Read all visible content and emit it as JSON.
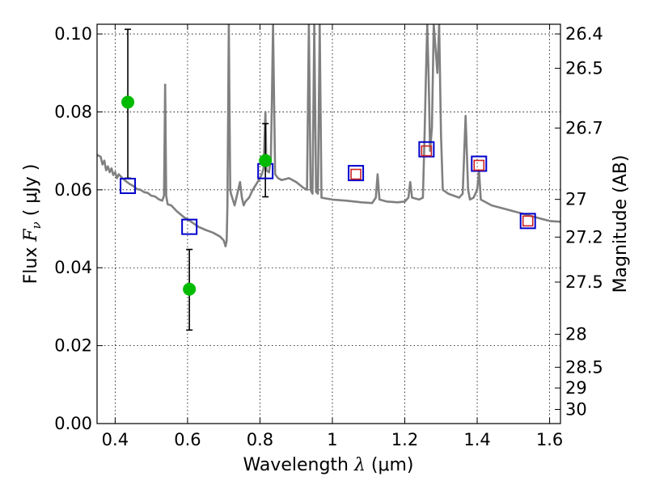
{
  "chart_data": {
    "type": "scatter",
    "xlabel": {
      "prefix": "Wavelength  ",
      "symbol": "λ",
      "unit": " (μm)"
    },
    "ylabel": {
      "prefix": "Flux  ",
      "symbol": "F",
      "sub": "ν",
      "unit": "  ( μJy )"
    },
    "y2label": "Magnitude (AB)",
    "xlim": [
      0.35,
      1.63
    ],
    "ylim": [
      0.0,
      0.1025
    ],
    "grid": true,
    "xticks": [
      {
        "value": 0.4,
        "label": "0.4"
      },
      {
        "value": 0.6,
        "label": "0.6"
      },
      {
        "value": 0.8,
        "label": "0.8"
      },
      {
        "value": 1.0,
        "label": "1"
      },
      {
        "value": 1.2,
        "label": "1.2"
      },
      {
        "value": 1.4,
        "label": "1.4"
      },
      {
        "value": 1.6,
        "label": "1.6"
      }
    ],
    "yticks": [
      {
        "value": 0.0,
        "label": "0.00"
      },
      {
        "value": 0.02,
        "label": "0.02"
      },
      {
        "value": 0.04,
        "label": "0.04"
      },
      {
        "value": 0.06,
        "label": "0.06"
      },
      {
        "value": 0.08,
        "label": "0.08"
      },
      {
        "value": 0.1,
        "label": "0.10"
      }
    ],
    "y2ticks": [
      {
        "value": 26.4,
        "label": "26.4"
      },
      {
        "value": 26.5,
        "label": "26.5"
      },
      {
        "value": 26.7,
        "label": "26.7"
      },
      {
        "value": 27.0,
        "label": "27"
      },
      {
        "value": 27.2,
        "label": "27.2"
      },
      {
        "value": 27.5,
        "label": "27.5"
      },
      {
        "value": 28.0,
        "label": "28"
      },
      {
        "value": 28.5,
        "label": "28.5"
      },
      {
        "value": 29.0,
        "label": "29"
      },
      {
        "value": 30.0,
        "label": "30"
      }
    ],
    "series": [
      {
        "name": "model SED",
        "kind": "line",
        "color": "#808080",
        "points": [
          [
            0.35,
            0.069
          ],
          [
            0.36,
            0.0685
          ],
          [
            0.365,
            0.0665
          ],
          [
            0.37,
            0.0675
          ],
          [
            0.375,
            0.065
          ],
          [
            0.38,
            0.066
          ],
          [
            0.385,
            0.0645
          ],
          [
            0.39,
            0.0655
          ],
          [
            0.395,
            0.0638
          ],
          [
            0.4,
            0.0645
          ],
          [
            0.405,
            0.063
          ],
          [
            0.41,
            0.064
          ],
          [
            0.42,
            0.063
          ],
          [
            0.43,
            0.0622
          ],
          [
            0.44,
            0.0615
          ],
          [
            0.45,
            0.061
          ],
          [
            0.46,
            0.0602
          ],
          [
            0.47,
            0.06
          ],
          [
            0.48,
            0.0594
          ],
          [
            0.49,
            0.0592
          ],
          [
            0.5,
            0.0585
          ],
          [
            0.51,
            0.0583
          ],
          [
            0.52,
            0.0576
          ],
          [
            0.53,
            0.0572
          ],
          [
            0.535,
            0.0585
          ],
          [
            0.538,
            0.087
          ],
          [
            0.541,
            0.0585
          ],
          [
            0.545,
            0.0563
          ],
          [
            0.555,
            0.056
          ],
          [
            0.57,
            0.0545
          ],
          [
            0.59,
            0.053
          ],
          [
            0.61,
            0.0518
          ],
          [
            0.63,
            0.0505
          ],
          [
            0.65,
            0.0497
          ],
          [
            0.67,
            0.049
          ],
          [
            0.69,
            0.048
          ],
          [
            0.7,
            0.047
          ],
          [
            0.705,
            0.0455
          ],
          [
            0.708,
            0.047
          ],
          [
            0.71,
            0.056
          ],
          [
            0.712,
            0.08
          ],
          [
            0.714,
            0.1025
          ],
          [
            0.716,
            0.08
          ],
          [
            0.718,
            0.06
          ],
          [
            0.72,
            0.059
          ],
          [
            0.73,
            0.056
          ],
          [
            0.74,
            0.06
          ],
          [
            0.745,
            0.062
          ],
          [
            0.75,
            0.058
          ],
          [
            0.755,
            0.056
          ],
          [
            0.76,
            0.057
          ],
          [
            0.77,
            0.058
          ],
          [
            0.78,
            0.06
          ],
          [
            0.79,
            0.0615
          ],
          [
            0.8,
            0.063
          ],
          [
            0.805,
            0.064
          ],
          [
            0.81,
            0.0655
          ],
          [
            0.815,
            0.08
          ],
          [
            0.818,
            0.065
          ],
          [
            0.825,
            0.0645
          ],
          [
            0.83,
            0.068
          ],
          [
            0.833,
            0.083
          ],
          [
            0.836,
            0.1025
          ],
          [
            0.839,
            0.083
          ],
          [
            0.842,
            0.064
          ],
          [
            0.85,
            0.063
          ],
          [
            0.86,
            0.0625
          ],
          [
            0.88,
            0.063
          ],
          [
            0.9,
            0.062
          ],
          [
            0.92,
            0.0605
          ],
          [
            0.93,
            0.06
          ],
          [
            0.935,
            0.1025
          ],
          [
            0.94,
            0.06
          ],
          [
            0.945,
            0.059
          ],
          [
            0.95,
            0.1025
          ],
          [
            0.955,
            0.0595
          ],
          [
            0.96,
            0.059
          ],
          [
            0.965,
            0.1025
          ],
          [
            0.97,
            0.058
          ],
          [
            0.98,
            0.0578
          ],
          [
            1.0,
            0.0575
          ],
          [
            1.04,
            0.0572
          ],
          [
            1.08,
            0.0568
          ],
          [
            1.11,
            0.0566
          ],
          [
            1.12,
            0.058
          ],
          [
            1.125,
            0.064
          ],
          [
            1.13,
            0.0575
          ],
          [
            1.15,
            0.057
          ],
          [
            1.18,
            0.0568
          ],
          [
            1.2,
            0.057
          ],
          [
            1.21,
            0.058
          ],
          [
            1.215,
            0.062
          ],
          [
            1.22,
            0.058
          ],
          [
            1.24,
            0.0575
          ],
          [
            1.25,
            0.058
          ],
          [
            1.255,
            0.075
          ],
          [
            1.258,
            0.088
          ],
          [
            1.262,
            0.1025
          ],
          [
            1.266,
            0.088
          ],
          [
            1.27,
            0.07
          ],
          [
            1.275,
            0.076
          ],
          [
            1.28,
            0.1025
          ],
          [
            1.29,
            0.09
          ],
          [
            1.295,
            0.1025
          ],
          [
            1.3,
            0.074
          ],
          [
            1.305,
            0.06
          ],
          [
            1.32,
            0.059
          ],
          [
            1.35,
            0.058
          ],
          [
            1.36,
            0.059
          ],
          [
            1.368,
            0.079
          ],
          [
            1.375,
            0.06
          ],
          [
            1.38,
            0.0575
          ],
          [
            1.39,
            0.058
          ],
          [
            1.4,
            0.06
          ],
          [
            1.405,
            0.065
          ],
          [
            1.41,
            0.0575
          ],
          [
            1.44,
            0.056
          ],
          [
            1.48,
            0.055
          ],
          [
            1.52,
            0.054
          ],
          [
            1.56,
            0.053
          ],
          [
            1.6,
            0.052
          ],
          [
            1.63,
            0.0518
          ]
        ]
      },
      {
        "name": "blue squares",
        "kind": "marker",
        "marker": "open-square",
        "color": "#0000cc",
        "points": [
          [
            0.435,
            0.061
          ],
          [
            0.605,
            0.0505
          ],
          [
            0.815,
            0.0648
          ],
          [
            1.065,
            0.0643
          ],
          [
            1.26,
            0.0704
          ],
          [
            1.405,
            0.0667
          ],
          [
            1.54,
            0.052
          ]
        ]
      },
      {
        "name": "red squares",
        "kind": "marker",
        "marker": "small-open-square",
        "color": "#cc2222",
        "points": [
          [
            1.065,
            0.064
          ],
          [
            1.26,
            0.07
          ],
          [
            1.405,
            0.0663
          ],
          [
            1.54,
            0.052
          ]
        ]
      },
      {
        "name": "green points",
        "kind": "errorbar",
        "marker": "filled-circle",
        "color": "#00bb00",
        "points": [
          {
            "x": 0.435,
            "y": 0.0825,
            "ylow": 0.063,
            "yhigh": 0.1012
          },
          {
            "x": 0.605,
            "y": 0.0345,
            "ylow": 0.024,
            "yhigh": 0.0447
          },
          {
            "x": 0.815,
            "y": 0.0675,
            "ylow": 0.0582,
            "yhigh": 0.077
          }
        ]
      }
    ]
  }
}
